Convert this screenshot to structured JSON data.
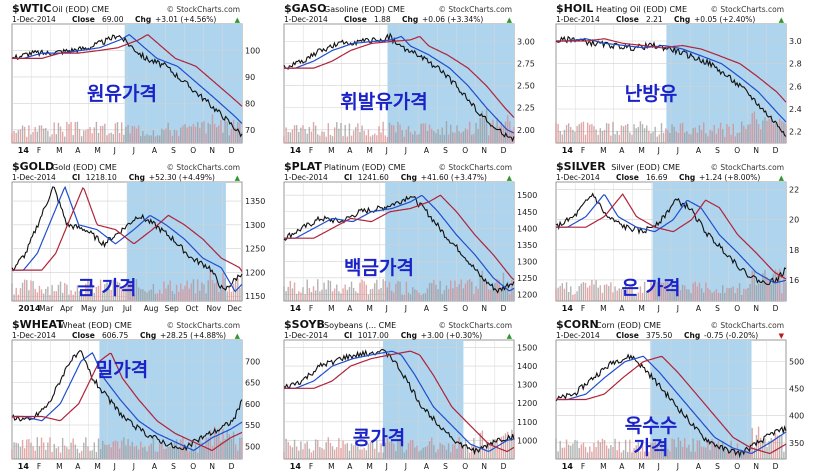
{
  "watermark": "© StockCharts.com",
  "months_2014": [
    "14",
    "F",
    "M",
    "A",
    "M",
    "J",
    "J",
    "A",
    "S",
    "O",
    "N",
    "D"
  ],
  "months_alt": [
    "2014",
    "Mar",
    "Apr",
    "May",
    "Jun",
    "Jul",
    "Aug",
    "Sep",
    "Oct",
    "Nov",
    "Dec"
  ],
  "colors": {
    "price": "#111111",
    "ma_blue": "#1f4fcf",
    "ma_red": "#b0233a",
    "shade": "#aed4ee",
    "korean": "#1b23c8",
    "up": "#2e9a2e",
    "down": "#c01818"
  },
  "chart_data": [
    {
      "type": "line",
      "symbol": "$WTIC",
      "name": "Oil (EOD) CME",
      "date": "1-Dec-2014",
      "close_label": "Close",
      "close": "69.00",
      "chg_label": "Chg",
      "chg": "+3.01 (+4.56%)",
      "direction": "up",
      "korean_label": "원유가격",
      "ylim": [
        65,
        110
      ],
      "yticks": [
        "100",
        "90",
        "80",
        "70"
      ],
      "ytick_values": [
        100,
        90,
        80,
        70
      ],
      "months": "months_2014",
      "x": [
        0,
        0.08,
        0.16,
        0.25,
        0.33,
        0.42,
        0.46,
        0.5,
        0.58,
        0.67,
        0.75,
        0.83,
        0.92,
        1
      ],
      "y": [
        97,
        99,
        99,
        100,
        101,
        104,
        106,
        103,
        97,
        94,
        88,
        82,
        75,
        68
      ]
    },
    {
      "type": "line",
      "symbol": "$GASO",
      "name": "Gasoline (EOD) CME",
      "date": "1-Dec-2014",
      "close_label": "Close",
      "close": "1.88",
      "chg_label": "Chg",
      "chg": "+0.06 (+3.34%)",
      "direction": "up",
      "korean_label": "휘발유가격",
      "ylim": [
        1.85,
        3.2
      ],
      "yticks": [
        "3.00",
        "2.75",
        "2.50",
        "2.25",
        "2.00"
      ],
      "ytick_values": [
        3.0,
        2.75,
        2.5,
        2.25,
        2.0
      ],
      "months": "months_2014",
      "x": [
        0,
        0.08,
        0.16,
        0.25,
        0.33,
        0.42,
        0.46,
        0.5,
        0.58,
        0.67,
        0.75,
        0.83,
        0.92,
        1
      ],
      "y": [
        2.7,
        2.78,
        2.9,
        2.98,
        3.0,
        3.02,
        3.06,
        2.95,
        2.85,
        2.7,
        2.5,
        2.25,
        2.0,
        1.9
      ]
    },
    {
      "type": "line",
      "symbol": "$HOIL",
      "name": "Heating Oil (EOD) CME",
      "date": "1-Dec-2014",
      "close_label": "Close",
      "close": "2.21",
      "chg_label": "Chg",
      "chg": "+0.05 (+2.40%)",
      "direction": "up",
      "korean_label": "난방유",
      "ylim": [
        2.1,
        3.15
      ],
      "yticks": [
        "3.0",
        "2.8",
        "2.6",
        "2.4",
        "2.2"
      ],
      "ytick_values": [
        3.0,
        2.8,
        2.6,
        2.4,
        2.2
      ],
      "months": "months_2014",
      "x": [
        0,
        0.08,
        0.16,
        0.25,
        0.33,
        0.42,
        0.5,
        0.58,
        0.67,
        0.75,
        0.83,
        0.92,
        1
      ],
      "y": [
        3.0,
        3.02,
        2.98,
        2.96,
        2.94,
        2.96,
        2.93,
        2.87,
        2.8,
        2.68,
        2.55,
        2.35,
        2.18
      ]
    },
    {
      "type": "line",
      "symbol": "$GOLD",
      "name": "Gold (EOD) CME",
      "date": "1-Dec-2014",
      "close_label": "Cl",
      "close": "1218.10",
      "chg_label": "Chg",
      "chg": "+52.30 (+4.49%)",
      "direction": "up",
      "korean_label": "금 가격",
      "ylim": [
        1140,
        1390
      ],
      "yticks": [
        "1350",
        "1300",
        "1250",
        "1200",
        "1150"
      ],
      "ytick_values": [
        1350,
        1300,
        1250,
        1200,
        1150
      ],
      "months": "months_alt",
      "x": [
        0,
        0.06,
        0.12,
        0.18,
        0.24,
        0.32,
        0.4,
        0.48,
        0.55,
        0.62,
        0.7,
        0.78,
        0.86,
        0.92,
        1
      ],
      "y": [
        1205,
        1240,
        1310,
        1380,
        1300,
        1290,
        1260,
        1290,
        1320,
        1300,
        1270,
        1230,
        1210,
        1160,
        1200
      ]
    },
    {
      "type": "line",
      "symbol": "$PLAT",
      "name": "Platinum (EOD) CME",
      "date": "1-Dec-2014",
      "close_label": "Cl",
      "close": "1241.60",
      "chg_label": "Chg",
      "chg": "+41.60 (+3.47%)",
      "direction": "up",
      "korean_label": "백금가격",
      "ylim": [
        1180,
        1540
      ],
      "yticks": [
        "1500",
        "1450",
        "1400",
        "1350",
        "1300",
        "1250",
        "1200"
      ],
      "ytick_values": [
        1500,
        1450,
        1400,
        1350,
        1300,
        1250,
        1200
      ],
      "months": "months_2014",
      "x": [
        0,
        0.08,
        0.16,
        0.25,
        0.33,
        0.42,
        0.5,
        0.55,
        0.62,
        0.7,
        0.78,
        0.86,
        0.93,
        1
      ],
      "y": [
        1370,
        1400,
        1430,
        1420,
        1450,
        1460,
        1480,
        1500,
        1450,
        1380,
        1320,
        1250,
        1210,
        1240
      ]
    },
    {
      "type": "line",
      "symbol": "$SILVER",
      "name": "Silver (EOD) CME",
      "date": "1-Dec-2014",
      "close_label": "Close",
      "close": "16.69",
      "chg_label": "Chg",
      "chg": "+1.24 (+8.00%)",
      "direction": "up",
      "korean_label": "은 가격",
      "ylim": [
        14.6,
        22.5
      ],
      "yticks": [
        "22",
        "20",
        "18",
        "16"
      ],
      "ytick_values": [
        22,
        20,
        18,
        16
      ],
      "months": "months_2014",
      "x": [
        0,
        0.08,
        0.16,
        0.22,
        0.3,
        0.38,
        0.46,
        0.52,
        0.58,
        0.66,
        0.74,
        0.82,
        0.9,
        0.96,
        1
      ],
      "y": [
        19.5,
        20.2,
        21.7,
        20.2,
        19.5,
        19.2,
        20.0,
        21.3,
        20.8,
        19.0,
        17.8,
        16.5,
        15.8,
        16.0,
        16.7
      ]
    },
    {
      "type": "line",
      "symbol": "$WHEAT",
      "name": "Wheat (EOD) CME",
      "date": "1-Dec-2014",
      "close_label": "Close",
      "close": "606.75",
      "chg_label": "Chg",
      "chg": "+28.25 (+4.88%)",
      "direction": "up",
      "korean_label": "밀가격",
      "ylim": [
        470,
        750
      ],
      "yticks": [
        "700",
        "650",
        "600",
        "550",
        "500"
      ],
      "ytick_values": [
        700,
        650,
        600,
        550,
        500
      ],
      "months": "months_2014",
      "x": [
        0,
        0.08,
        0.16,
        0.25,
        0.3,
        0.35,
        0.42,
        0.5,
        0.58,
        0.66,
        0.74,
        0.82,
        0.9,
        0.96,
        1
      ],
      "y": [
        570,
        560,
        600,
        700,
        720,
        660,
        610,
        560,
        530,
        510,
        490,
        520,
        540,
        560,
        605
      ]
    },
    {
      "type": "line",
      "symbol": "$SOYB",
      "name": "Soybeans (... CME",
      "date": "1-Dec-2014",
      "close_label": "Cl",
      "close": "1017.00",
      "chg_label": "Chg",
      "chg": "+3.00 (+0.30%)",
      "direction": "up",
      "korean_label": "콩가격",
      "ylim": [
        900,
        1540
      ],
      "yticks": [
        "1500",
        "1400",
        "1300",
        "1200",
        "1100",
        "1000"
      ],
      "ytick_values": [
        1500,
        1400,
        1300,
        1200,
        1100,
        1000
      ],
      "months": "months_2014",
      "x": [
        0,
        0.08,
        0.16,
        0.25,
        0.33,
        0.42,
        0.46,
        0.52,
        0.6,
        0.68,
        0.76,
        0.84,
        0.92,
        1
      ],
      "y": [
        1280,
        1320,
        1400,
        1440,
        1460,
        1480,
        1460,
        1350,
        1180,
        1080,
        980,
        940,
        1000,
        1020
      ]
    },
    {
      "type": "line",
      "symbol": "$CORN",
      "name": "Corn (EOD) CME",
      "date": "1-Dec-2014",
      "close_label": "Close",
      "close": "375.50",
      "chg_label": "Chg",
      "chg": "-0.75 (-0.20%)",
      "direction": "down",
      "korean_label": "옥수수\n가격",
      "ylim": [
        320,
        540
      ],
      "yticks": [
        "500",
        "450",
        "400",
        "350"
      ],
      "ytick_values": [
        500,
        450,
        400,
        350
      ],
      "months": "months_2014",
      "x": [
        0,
        0.08,
        0.16,
        0.25,
        0.33,
        0.4,
        0.48,
        0.56,
        0.64,
        0.72,
        0.8,
        0.88,
        0.95,
        1
      ],
      "y": [
        430,
        440,
        470,
        500,
        510,
        480,
        440,
        400,
        360,
        340,
        330,
        350,
        370,
        375
      ]
    }
  ]
}
